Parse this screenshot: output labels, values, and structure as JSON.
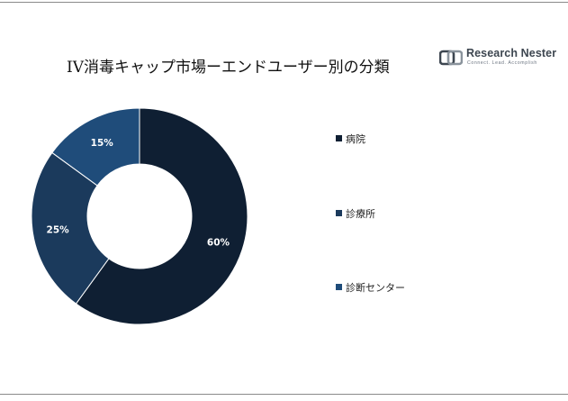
{
  "header": {
    "title": "IV消毒キャップ市場ーエンドユーザー別の分類"
  },
  "logo": {
    "name": "Research Nester",
    "tagline": "Connect. Lead. Accomplish"
  },
  "colors": {
    "series": [
      "#0f1f33",
      "#1b3a5c",
      "#1f4c7a"
    ],
    "background": "#ffffff",
    "logo": "#3d4650"
  },
  "chart_data": {
    "type": "pie",
    "style": "donut",
    "categories": [
      "病院",
      "診療所",
      "診断センター"
    ],
    "values": [
      60,
      25,
      15
    ],
    "data_labels": [
      "60%",
      "25%",
      "15%"
    ],
    "legend": "right",
    "title": "IV消毒キャップ市場ーエンドユーザー別の分類"
  }
}
